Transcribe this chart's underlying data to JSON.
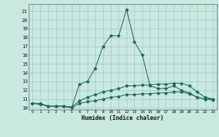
{
  "title": "",
  "xlabel": "Humidex (Indice chaleur)",
  "ylabel": "",
  "background_color": "#c8e8e0",
  "grid_color": "#a0c8c0",
  "line_color": "#1a6b60",
  "xlim": [
    -0.5,
    23.5
  ],
  "ylim": [
    9.8,
    21.8
  ],
  "xticks": [
    0,
    1,
    2,
    3,
    4,
    5,
    6,
    7,
    8,
    9,
    10,
    11,
    12,
    13,
    14,
    15,
    16,
    17,
    18,
    19,
    20,
    21,
    22,
    23
  ],
  "yticks": [
    10,
    11,
    12,
    13,
    14,
    15,
    16,
    17,
    18,
    19,
    20,
    21
  ],
  "series": {
    "max": [
      10.5,
      10.5,
      10.2,
      10.2,
      10.2,
      10.0,
      12.7,
      13.0,
      14.5,
      17.0,
      18.2,
      18.2,
      21.2,
      17.5,
      16.0,
      12.5,
      12.2,
      12.2,
      12.5,
      12.0,
      11.7,
      11.2,
      11.0,
      11.0
    ],
    "mean": [
      10.5,
      10.4,
      10.2,
      10.2,
      10.2,
      10.1,
      10.8,
      11.2,
      11.5,
      11.8,
      12.0,
      12.2,
      12.5,
      12.5,
      12.6,
      12.6,
      12.7,
      12.7,
      12.8,
      12.8,
      12.5,
      11.8,
      11.2,
      11.0
    ],
    "min": [
      10.5,
      10.4,
      10.2,
      10.2,
      10.2,
      10.0,
      10.5,
      10.7,
      10.8,
      11.0,
      11.2,
      11.3,
      11.5,
      11.5,
      11.6,
      11.6,
      11.7,
      11.7,
      11.8,
      11.8,
      11.6,
      11.2,
      11.0,
      10.9
    ]
  },
  "x": [
    0,
    1,
    2,
    3,
    4,
    5,
    6,
    7,
    8,
    9,
    10,
    11,
    12,
    13,
    14,
    15,
    16,
    17,
    18,
    19,
    20,
    21,
    22,
    23
  ]
}
